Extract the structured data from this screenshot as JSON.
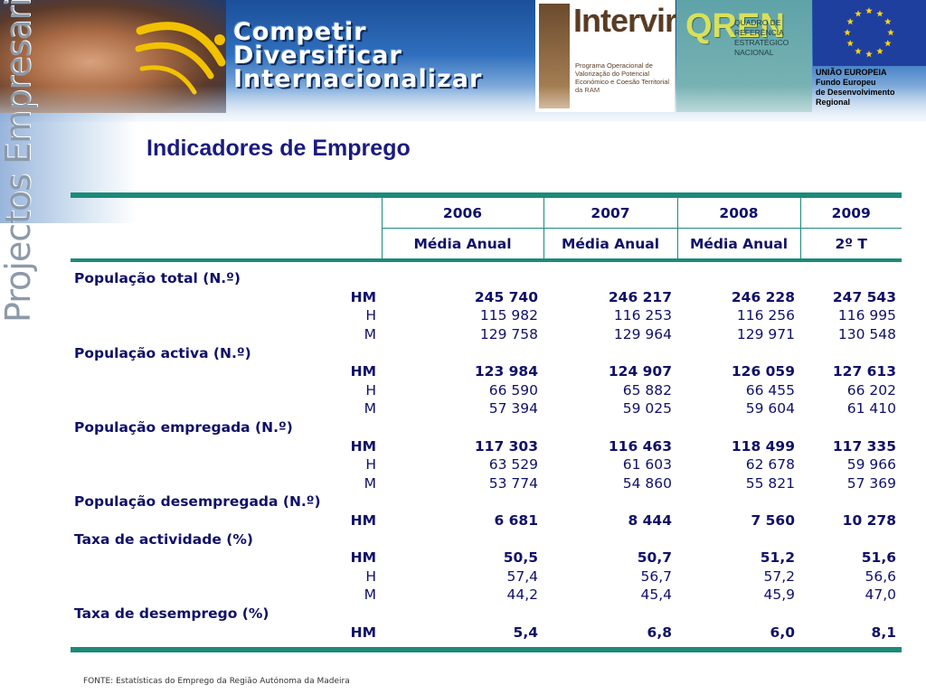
{
  "banner": {
    "tagline": [
      "Competir",
      "Diversificar",
      "Internacionalizar"
    ],
    "intervir": {
      "title": "Intervir+",
      "description": "Programa Operacional de Valorização do Potencial Económico e Coesão Territorial da RAM"
    },
    "qren": {
      "letters": "QREN",
      "text": "QUADRO DE REFERÊNCIA ESTRATÉGICO NACIONAL"
    },
    "eu": {
      "caption_lines": [
        "UNIÃO EUROPEIA",
        "Fundo Europeu",
        "de Desenvolvimento",
        "Regional"
      ]
    }
  },
  "sidebar": {
    "title": "Projectos Empresariais"
  },
  "page": {
    "title": "Indicadores de Emprego"
  },
  "table": {
    "years": [
      "2006",
      "2007",
      "2008",
      "2009"
    ],
    "periods": [
      "Média Anual",
      "Média Anual",
      "Média Anual",
      "2º T"
    ],
    "sections": [
      {
        "title": "População total (N.º)",
        "rows": [
          {
            "label": "HM",
            "values": [
              "245 740",
              "246 217",
              "246 228",
              "247 543"
            ]
          },
          {
            "label": "H",
            "values": [
              "115 982",
              "116 253",
              "116 256",
              "116 995"
            ]
          },
          {
            "label": "M",
            "values": [
              "129 758",
              "129 964",
              "129 971",
              "130 548"
            ]
          }
        ]
      },
      {
        "title": "População activa (N.º)",
        "rows": [
          {
            "label": "HM",
            "values": [
              "123 984",
              "124 907",
              "126 059",
              "127 613"
            ]
          },
          {
            "label": "H",
            "values": [
              "66 590",
              "65 882",
              "66 455",
              "66 202"
            ]
          },
          {
            "label": "M",
            "values": [
              "57 394",
              "59 025",
              "59 604",
              "61 410"
            ]
          }
        ]
      },
      {
        "title": "População empregada (N.º)",
        "rows": [
          {
            "label": "HM",
            "values": [
              "117 303",
              "116 463",
              "118 499",
              "117 335"
            ]
          },
          {
            "label": "H",
            "values": [
              "63 529",
              "61 603",
              "62 678",
              "59 966"
            ]
          },
          {
            "label": "M",
            "values": [
              "53 774",
              "54 860",
              "55 821",
              "57 369"
            ]
          }
        ]
      },
      {
        "title": "População desempregada (N.º)",
        "rows": [
          {
            "label": "HM",
            "values": [
              "6 681",
              "8 444",
              "7 560",
              "10 278"
            ]
          }
        ]
      },
      {
        "title": "Taxa de actividade (%)",
        "rows": [
          {
            "label": "HM",
            "values": [
              "50,5",
              "50,7",
              "51,2",
              "51,6"
            ]
          },
          {
            "label": "H",
            "values": [
              "57,4",
              "56,7",
              "57,2",
              "56,6"
            ]
          },
          {
            "label": "M",
            "values": [
              "44,2",
              "45,4",
              "45,9",
              "47,0"
            ]
          }
        ]
      },
      {
        "title": "Taxa de desemprego (%)",
        "rows": [
          {
            "label": "HM",
            "values": [
              "5,4",
              "6,8",
              "6,0",
              "8,1"
            ]
          }
        ]
      }
    ]
  },
  "footer": {
    "source": "FONTE: Estatísticas do Emprego da Região Autónoma da Madeira"
  }
}
